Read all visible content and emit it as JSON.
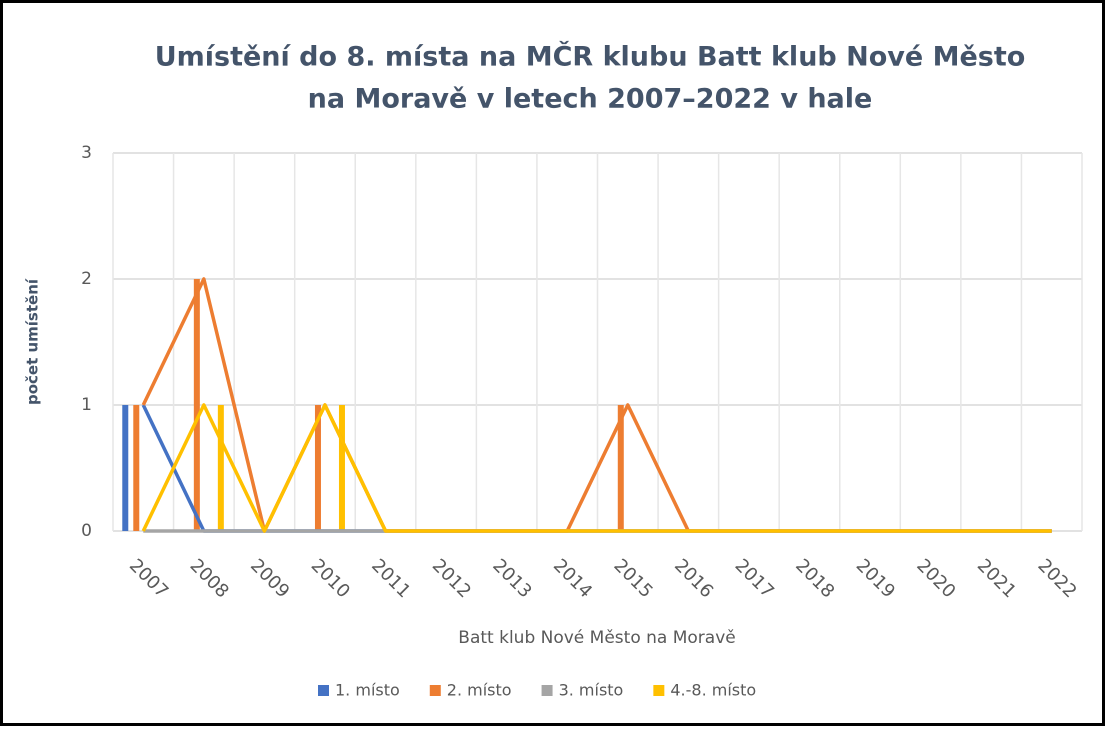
{
  "chart_data": {
    "type": "bar_line",
    "title": "Umístění do 8. místa na MČR klubu Batt klub Nové Město na Moravě v letech 2007–2022 v hale",
    "title_lines": [
      "Umístění do 8. místa na MČR klubu Batt klub Nové Město",
      "na Moravě v letech 2007–2022 v hale"
    ],
    "x_label": "Batt klub Nové Město na Moravě",
    "y_label": "počet umístění",
    "categories": [
      "2007",
      "2008",
      "2009",
      "2010",
      "2011",
      "2012",
      "2013",
      "2014",
      "2015",
      "2016",
      "2017",
      "2018",
      "2019",
      "2020",
      "2021",
      "2022"
    ],
    "series": [
      {
        "name": "1. místo",
        "color": "#4472c4",
        "values": [
          1,
          0,
          0,
          0,
          0,
          0,
          0,
          0,
          0,
          0,
          0,
          0,
          0,
          0,
          0,
          0
        ]
      },
      {
        "name": "2. místo",
        "color": "#ed7d31",
        "values": [
          1,
          2,
          0,
          1,
          0,
          0,
          0,
          0,
          1,
          0,
          0,
          0,
          0,
          0,
          0,
          0
        ]
      },
      {
        "name": "3. místo",
        "color": "#a5a5a5",
        "values": [
          0,
          0,
          0,
          0,
          0,
          0,
          0,
          0,
          0,
          0,
          0,
          0,
          0,
          0,
          0,
          0
        ]
      },
      {
        "name": "4.-8. místo",
        "color": "#ffc000",
        "values": [
          0,
          1,
          0,
          1,
          0,
          0,
          0,
          0,
          0,
          0,
          0,
          0,
          0,
          0,
          0,
          0
        ]
      }
    ],
    "ylim": [
      0,
      3
    ],
    "yticks": [
      0,
      1,
      2,
      3
    ],
    "grid": true,
    "legend": "bottom"
  }
}
